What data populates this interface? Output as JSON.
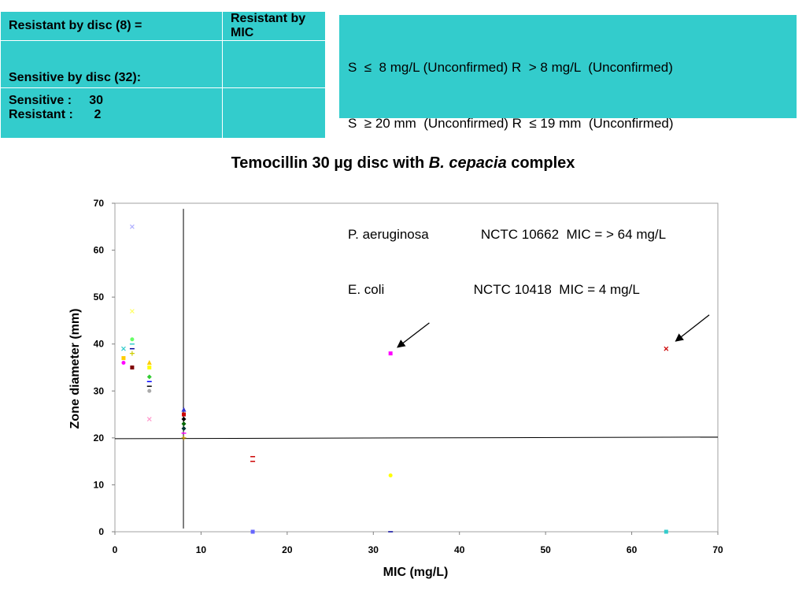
{
  "table": {
    "row1": {
      "left": "Resistant by disc (8) =",
      "right": "Resistant by MIC"
    },
    "row2": {
      "left": "Sensitive by disc (32):",
      "right": ""
    },
    "row3": {
      "line1": "Sensitive :     30",
      "line2": "Resistant :      2",
      "right": ""
    }
  },
  "breakpoints": {
    "lines": [
      "S  ≤  8 mg/L (Unconfirmed) R  > 8 mg/L  (Unconfirmed)",
      "S  ≥ 20 mm  (Unconfirmed) R  ≤ 19 mm  (Unconfirmed)",
      "",
      "P. aeruginosa              NCTC 10662  MIC = > 64 mg/L",
      "E. coli                        NCTC 10418  MIC = 4 mg/L"
    ]
  },
  "chart_data": {
    "type": "scatter",
    "title_plain": "Temocillin 30 µg disc with ",
    "title_italic": "B. cepacia",
    "title_suffix": " complex",
    "xlabel": "MIC (mg/L)",
    "ylabel": "Zone diameter (mm)",
    "xlim": [
      0,
      70
    ],
    "ylim": [
      0,
      70
    ],
    "xticks": [
      0,
      10,
      20,
      30,
      40,
      50,
      60,
      70
    ],
    "yticks": [
      0,
      10,
      20,
      30,
      40,
      50,
      60,
      70
    ],
    "grid": false,
    "reference_lines": {
      "x": 8,
      "y": 20
    },
    "points": [
      {
        "x": 2,
        "y": 65,
        "color": "#b0b0ff",
        "marker": "x"
      },
      {
        "x": 2,
        "y": 47,
        "color": "#ffff66",
        "marker": "x"
      },
      {
        "x": 2,
        "y": 41,
        "color": "#66ff66",
        "marker": "circle"
      },
      {
        "x": 2,
        "y": 40,
        "color": "#33cccc",
        "marker": "dash"
      },
      {
        "x": 2,
        "y": 39,
        "color": "#000099",
        "marker": "dash"
      },
      {
        "x": 1,
        "y": 39,
        "color": "#33cccc",
        "marker": "x"
      },
      {
        "x": 2,
        "y": 38,
        "color": "#cccc00",
        "marker": "plus"
      },
      {
        "x": 1,
        "y": 37,
        "color": "#ffcc00",
        "marker": "square"
      },
      {
        "x": 1,
        "y": 36,
        "color": "#ff00ff",
        "marker": "circle"
      },
      {
        "x": 2,
        "y": 35,
        "color": "#800000",
        "marker": "square"
      },
      {
        "x": 4,
        "y": 36,
        "color": "#ffcc00",
        "marker": "triangle"
      },
      {
        "x": 4,
        "y": 35,
        "color": "#ffff00",
        "marker": "square"
      },
      {
        "x": 4,
        "y": 33,
        "color": "#33cc33",
        "marker": "diamond"
      },
      {
        "x": 4,
        "y": 32,
        "color": "#0000ff",
        "marker": "dash"
      },
      {
        "x": 4,
        "y": 31,
        "color": "#000000",
        "marker": "dash"
      },
      {
        "x": 4,
        "y": 30,
        "color": "#aaaaaa",
        "marker": "circle"
      },
      {
        "x": 4,
        "y": 24,
        "color": "#ff99cc",
        "marker": "x"
      },
      {
        "x": 8,
        "y": 26,
        "color": "#3333cc",
        "marker": "triangle"
      },
      {
        "x": 8,
        "y": 25,
        "color": "#cc0000",
        "marker": "square"
      },
      {
        "x": 8,
        "y": 24,
        "color": "#000000",
        "marker": "diamond"
      },
      {
        "x": 8,
        "y": 23,
        "color": "#006600",
        "marker": "diamond"
      },
      {
        "x": 8,
        "y": 22,
        "color": "#003333",
        "marker": "diamond"
      },
      {
        "x": 8,
        "y": 21,
        "color": "#ff00ff",
        "marker": "dash"
      },
      {
        "x": 8,
        "y": 20,
        "color": "#cc9900",
        "marker": "plus"
      },
      {
        "x": 16,
        "y": 16,
        "color": "#cc0000",
        "marker": "dash"
      },
      {
        "x": 16,
        "y": 15,
        "color": "#cc0000",
        "marker": "dash"
      },
      {
        "x": 16,
        "y": 0,
        "color": "#6666ff",
        "marker": "square"
      },
      {
        "x": 32,
        "y": 38,
        "color": "#ff00ff",
        "marker": "square"
      },
      {
        "x": 32,
        "y": 12,
        "color": "#ffff00",
        "marker": "circle"
      },
      {
        "x": 32,
        "y": 0,
        "color": "#000099",
        "marker": "dash"
      },
      {
        "x": 64,
        "y": 39,
        "color": "#cc0000",
        "marker": "x"
      },
      {
        "x": 64,
        "y": 0,
        "color": "#33cccc",
        "marker": "square"
      }
    ],
    "arrows": [
      {
        "from": [
          36.5,
          44.5
        ],
        "to": [
          32.8,
          39.3
        ]
      },
      {
        "from": [
          69,
          46.2
        ],
        "to": [
          65.1,
          40.6
        ]
      }
    ]
  }
}
